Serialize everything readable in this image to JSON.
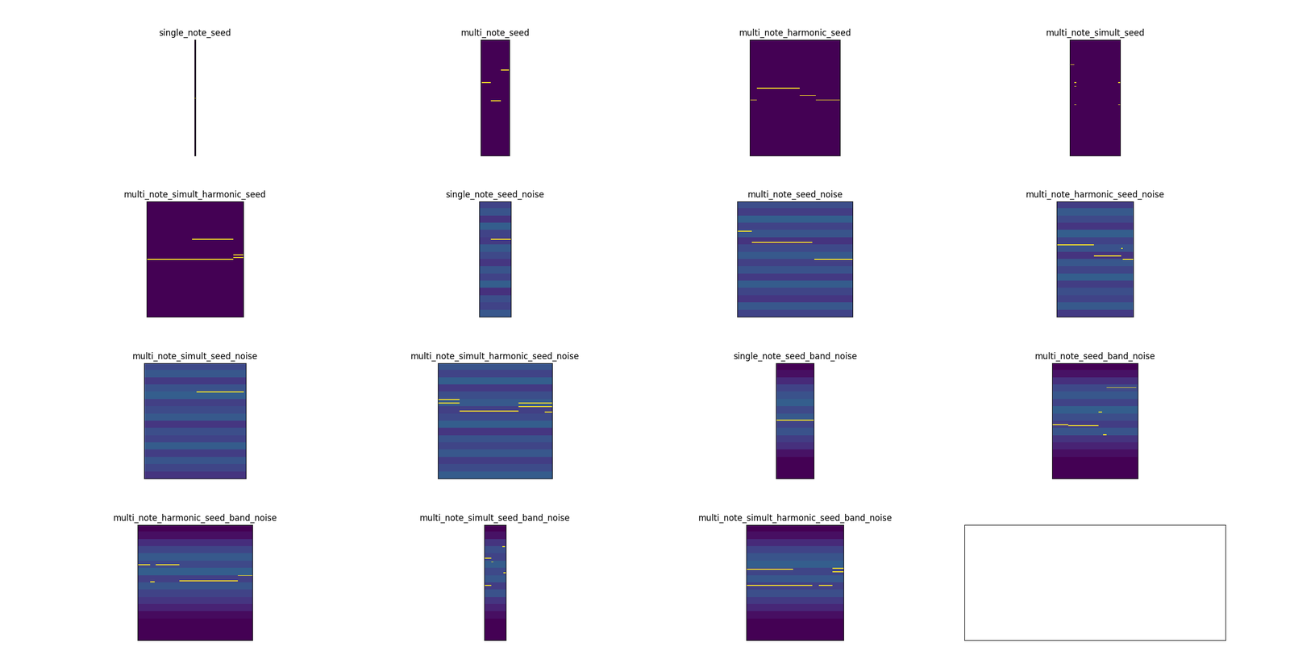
{
  "chart_data": [
    {
      "type": "heatmap",
      "title": "single_note_seed",
      "rows": 128,
      "cols": 1,
      "row_levels": [
        0
      ],
      "note_value": 1,
      "notes": [
        [
          64,
          0,
          1
        ]
      ],
      "value_range": [
        0,
        1
      ],
      "color": "viridis",
      "tick_labels": false
    },
    {
      "type": "heatmap",
      "title": "multi_note_seed",
      "rows": 128,
      "cols": 32,
      "row_levels": [
        0
      ],
      "note_value": 1,
      "notes": [
        [
          33,
          22,
          31
        ],
        [
          47,
          1,
          11
        ],
        [
          67,
          11,
          22
        ]
      ],
      "value_range": [
        0,
        1
      ],
      "color": "viridis",
      "tick_labels": false
    },
    {
      "type": "heatmap",
      "title": "multi_note_harmonic_seed",
      "rows": 128,
      "cols": 100,
      "row_levels": [
        0
      ],
      "note_value": 1,
      "notes": [
        [
          53,
          8,
          55
        ],
        [
          66,
          0,
          8
        ],
        [
          61,
          55,
          73
        ],
        [
          66,
          73,
          100
        ]
      ],
      "value_range": [
        0,
        1
      ],
      "color": "viridis",
      "tick_labels": false
    },
    {
      "type": "heatmap",
      "title": "multi_note_simult_seed",
      "rows": 128,
      "cols": 56,
      "row_levels": [
        0
      ],
      "note_value": 1,
      "notes": [
        [
          27,
          0,
          5
        ],
        [
          47,
          5,
          7
        ],
        [
          51,
          5,
          7
        ],
        [
          71,
          5,
          7
        ],
        [
          47,
          53,
          56
        ],
        [
          71,
          53,
          56
        ]
      ],
      "value_range": [
        0,
        1
      ],
      "color": "viridis",
      "tick_labels": false
    },
    {
      "type": "heatmap",
      "title": "multi_note_simult_harmonic_seed",
      "rows": 128,
      "cols": 107,
      "row_levels": [
        0
      ],
      "note_value": 1,
      "notes": [
        [
          42,
          50,
          96
        ],
        [
          64,
          0,
          96
        ],
        [
          59,
          96,
          107
        ],
        [
          62,
          96,
          107
        ]
      ],
      "value_range": [
        0,
        1
      ],
      "color": "viridis",
      "tick_labels": false
    },
    {
      "type": "heatmap",
      "title": "single_note_seed_noise",
      "rows": 128,
      "cols": 35,
      "row_levels": [
        0.2,
        0.26,
        0.15,
        0.3,
        0.2,
        0.17,
        0.28,
        0.22,
        0.16,
        0.26,
        0.2,
        0.3,
        0.14,
        0.24,
        0.2,
        0.27
      ],
      "note_value": 1,
      "notes": [
        [
          42,
          13,
          35
        ]
      ],
      "value_range": [
        0,
        1
      ],
      "color": "viridis",
      "tick_labels": false
    },
    {
      "type": "heatmap",
      "title": "multi_note_seed_noise",
      "rows": 128,
      "cols": 128,
      "row_levels": [
        0.24,
        0.18,
        0.3,
        0.2,
        0.26,
        0.15,
        0.22,
        0.28,
        0.19,
        0.25,
        0.17,
        0.29,
        0.21,
        0.16,
        0.27,
        0.2
      ],
      "note_value": 1,
      "notes": [
        [
          33,
          0,
          16
        ],
        [
          45,
          16,
          83
        ],
        [
          64,
          85,
          128
        ]
      ],
      "value_range": [
        0,
        1
      ],
      "color": "viridis",
      "tick_labels": false
    },
    {
      "type": "heatmap",
      "title": "multi_note_harmonic_seed_noise",
      "rows": 128,
      "cols": 85,
      "row_levels": [
        0.18,
        0.28,
        0.22,
        0.16,
        0.3,
        0.2,
        0.25,
        0.15,
        0.27,
        0.21,
        0.3,
        0.18,
        0.24,
        0.2,
        0.28,
        0.17
      ],
      "note_value": 1,
      "notes": [
        [
          48,
          0,
          41
        ],
        [
          60,
          41,
          71
        ],
        [
          64,
          73,
          85
        ],
        [
          52,
          71,
          73
        ]
      ],
      "value_range": [
        0,
        1
      ],
      "color": "viridis",
      "tick_labels": false
    },
    {
      "type": "heatmap",
      "title": "multi_note_simult_seed_noise",
      "rows": 128,
      "cols": 113,
      "row_levels": [
        0.22,
        0.27,
        0.17,
        0.25,
        0.3,
        0.19,
        0.23,
        0.28,
        0.16,
        0.24,
        0.2,
        0.29,
        0.18,
        0.26,
        0.21,
        0.15
      ],
      "note_value": 1,
      "notes": [
        [
          32,
          58,
          110
        ]
      ],
      "value_range": [
        0,
        1
      ],
      "color": "viridis",
      "tick_labels": false
    },
    {
      "type": "heatmap",
      "title": "multi_note_simult_harmonic_seed_noise",
      "rows": 128,
      "cols": 127,
      "row_levels": [
        0.26,
        0.2,
        0.3,
        0.17,
        0.24,
        0.28,
        0.19,
        0.22,
        0.3,
        0.16,
        0.25,
        0.21,
        0.27,
        0.18,
        0.23,
        0.29
      ],
      "note_value": 1,
      "notes": [
        [
          44,
          0,
          24
        ],
        [
          40,
          0,
          24
        ],
        [
          53,
          24,
          89
        ],
        [
          44,
          89,
          127
        ],
        [
          48,
          89,
          127
        ],
        [
          54,
          118,
          127
        ]
      ],
      "value_range": [
        0,
        1
      ],
      "color": "viridis",
      "tick_labels": false
    },
    {
      "type": "heatmap",
      "title": "single_note_seed_band_noise",
      "rows": 128,
      "cols": 42,
      "row_levels": [
        0,
        0.04,
        0.12,
        0.2,
        0.25,
        0.3,
        0.22,
        0.28,
        0.2,
        0.25,
        0.18,
        0.14,
        0.05,
        0,
        0,
        0
      ],
      "note_value": 1,
      "notes": [
        [
          63,
          0,
          42
        ]
      ],
      "value_range": [
        0,
        1
      ],
      "color": "viridis",
      "tick_labels": false
    },
    {
      "type": "heatmap",
      "title": "multi_note_seed_band_noise",
      "rows": 128,
      "cols": 95,
      "row_levels": [
        0,
        0.05,
        0.14,
        0.22,
        0.27,
        0.2,
        0.3,
        0.24,
        0.18,
        0.26,
        0.15,
        0.1,
        0.04,
        0,
        0,
        0
      ],
      "note_value": 1,
      "notes": [
        [
          27,
          60,
          93
        ],
        [
          68,
          0,
          18
        ],
        [
          69,
          18,
          51
        ],
        [
          54,
          51,
          55
        ],
        [
          79,
          56,
          60
        ]
      ],
      "value_range": [
        0,
        1
      ],
      "color": "viridis",
      "tick_labels": false
    },
    {
      "type": "heatmap",
      "title": "multi_note_harmonic_seed_band_noise",
      "rows": 128,
      "cols": 127,
      "row_levels": [
        0,
        0.04,
        0.13,
        0.21,
        0.28,
        0.22,
        0.3,
        0.19,
        0.26,
        0.2,
        0.16,
        0.1,
        0.03,
        0,
        0,
        0
      ],
      "note_value": 1,
      "notes": [
        [
          44,
          0,
          14
        ],
        [
          44,
          20,
          46
        ],
        [
          63,
          14,
          19
        ],
        [
          62,
          46,
          111
        ],
        [
          56,
          111,
          127
        ]
      ],
      "value_range": [
        0,
        1
      ],
      "color": "viridis",
      "tick_labels": false
    },
    {
      "type": "heatmap",
      "title": "multi_note_simult_seed_band_noise",
      "rows": 128,
      "cols": 24,
      "row_levels": [
        0,
        0.05,
        0.15,
        0.24,
        0.2,
        0.29,
        0.22,
        0.27,
        0.18,
        0.25,
        0.16,
        0.1,
        0.04,
        0,
        0,
        0
      ],
      "note_value": 1,
      "notes": [
        [
          37,
          0,
          8
        ],
        [
          67,
          0,
          8
        ],
        [
          24,
          20,
          23
        ],
        [
          53,
          21,
          24
        ],
        [
          41,
          8,
          10
        ]
      ],
      "value_range": [
        0,
        1
      ],
      "color": "viridis",
      "tick_labels": false
    },
    {
      "type": "heatmap",
      "title": "multi_note_simult_harmonic_seed_band_noise",
      "rows": 128,
      "cols": 108,
      "row_levels": [
        0,
        0.04,
        0.12,
        0.2,
        0.26,
        0.3,
        0.21,
        0.27,
        0.19,
        0.24,
        0.17,
        0.11,
        0.04,
        0,
        0,
        0
      ],
      "note_value": 1,
      "notes": [
        [
          49,
          0,
          52
        ],
        [
          67,
          0,
          52
        ],
        [
          67,
          52,
          73
        ],
        [
          67,
          80,
          95
        ],
        [
          52,
          95,
          108
        ],
        [
          48,
          95,
          108
        ]
      ],
      "value_range": [
        0,
        1
      ],
      "color": "viridis",
      "tick_labels": false
    }
  ]
}
